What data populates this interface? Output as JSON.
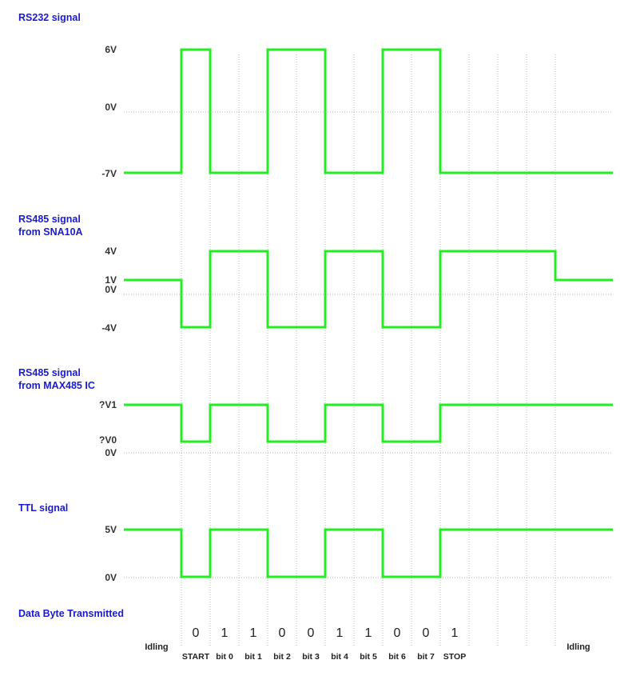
{
  "signals": [
    {
      "title": [
        "RS232 signal"
      ],
      "levels": [
        "6V",
        "0V",
        "-7V"
      ]
    },
    {
      "title": [
        "RS485 signal",
        "from SNA10A"
      ],
      "levels": [
        "4V",
        "1V",
        "0V",
        "-4V"
      ]
    },
    {
      "title": [
        "RS485 signal",
        "from MAX485 IC"
      ],
      "levels": [
        "?V1",
        "?V0",
        "0V"
      ]
    },
    {
      "title": [
        "TTL signal"
      ],
      "levels": [
        "5V",
        "0V"
      ]
    }
  ],
  "data_byte": {
    "title": "Data Byte Transmitted",
    "idle_left": "Idling",
    "idle_right": "Idling",
    "bits": [
      "0",
      "1",
      "1",
      "0",
      "0",
      "1",
      "1",
      "0",
      "0",
      "1"
    ],
    "bit_names": [
      "START",
      "bit 0",
      "bit 1",
      "bit 2",
      "bit 3",
      "bit 4",
      "bit 5",
      "bit 6",
      "bit 7",
      "STOP"
    ]
  },
  "colors": {
    "wave": "#22ee22",
    "title": "#1a1ad0",
    "grid": "#b4b4b4"
  }
}
